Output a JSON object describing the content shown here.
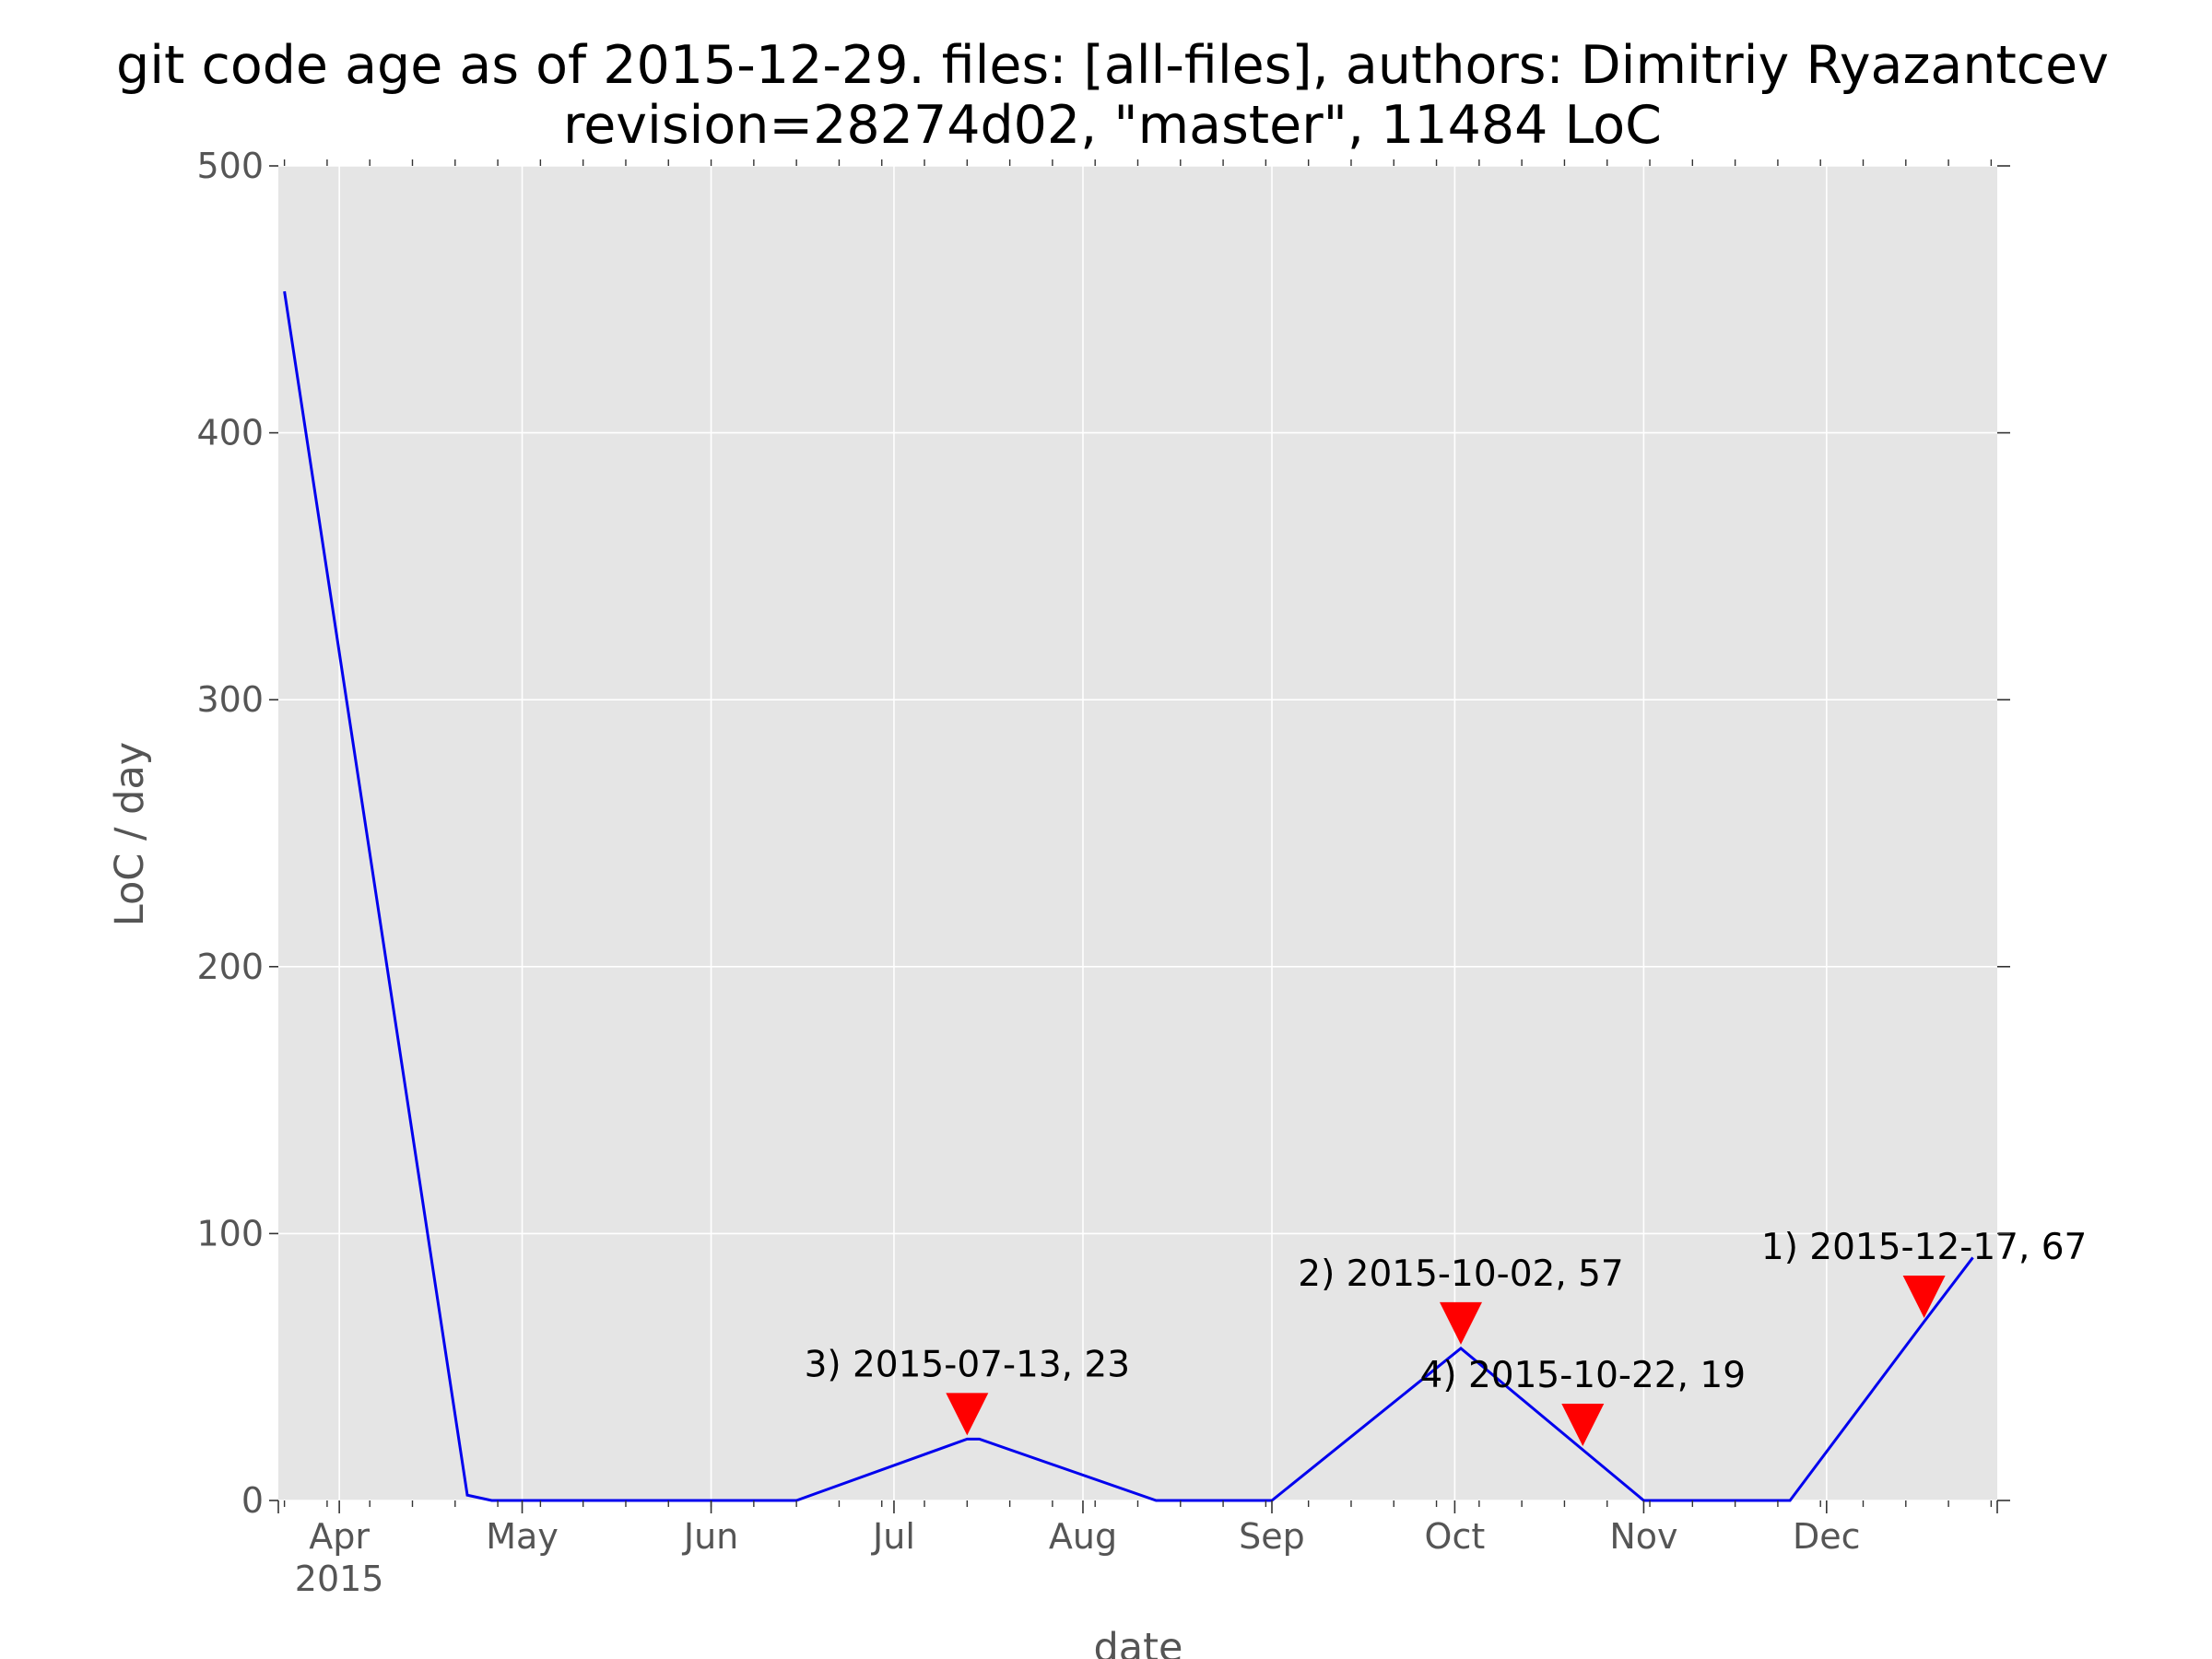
{
  "chart_data": {
    "type": "line",
    "title": {
      "line1": "git code age as of 2015-12-29. files: [all-files], authors: Dimitriy Ryazantcev",
      "line2": "revision=28274d02, \"master\", 11484 LoC"
    },
    "xlabel": "date",
    "ylabel": "LoC / day",
    "x_range": [
      "2015-03-22",
      "2015-12-29"
    ],
    "ylim": [
      0,
      500
    ],
    "y_ticks": [
      0,
      100,
      200,
      300,
      400,
      500
    ],
    "x_ticks": [
      {
        "date": "2015-04-01",
        "label": "Apr",
        "sublabel": "2015"
      },
      {
        "date": "2015-05-01",
        "label": "May"
      },
      {
        "date": "2015-06-01",
        "label": "Jun"
      },
      {
        "date": "2015-07-01",
        "label": "Jul"
      },
      {
        "date": "2015-08-01",
        "label": "Aug"
      },
      {
        "date": "2015-09-01",
        "label": "Sep"
      },
      {
        "date": "2015-10-01",
        "label": "Oct"
      },
      {
        "date": "2015-11-01",
        "label": "Nov"
      },
      {
        "date": "2015-12-01",
        "label": "Dec"
      }
    ],
    "grid": true,
    "background_color": "#e5e5e5",
    "grid_color": "#ffffff",
    "series": [
      {
        "color": "#0000ee",
        "points": [
          {
            "x": "2015-03-23",
            "y": 453
          },
          {
            "x": "2015-04-22",
            "y": 2
          },
          {
            "x": "2015-04-26",
            "y": 0
          },
          {
            "x": "2015-06-15",
            "y": 0
          },
          {
            "x": "2015-07-13",
            "y": 23
          },
          {
            "x": "2015-07-15",
            "y": 23
          },
          {
            "x": "2015-08-13",
            "y": 0
          },
          {
            "x": "2015-09-01",
            "y": 0
          },
          {
            "x": "2015-10-02",
            "y": 57
          },
          {
            "x": "2015-10-22",
            "y": 19
          },
          {
            "x": "2015-11-01",
            "y": 0
          },
          {
            "x": "2015-11-25",
            "y": 0
          },
          {
            "x": "2015-12-17",
            "y": 67
          },
          {
            "x": "2015-12-25",
            "y": 91
          }
        ]
      }
    ],
    "markers": {
      "color": "#ff0000",
      "shape": "triangle-down"
    },
    "annotations": [
      {
        "x": "2015-12-17",
        "y": 67,
        "label": "1) 2015-12-17, 67"
      },
      {
        "x": "2015-10-02",
        "y": 57,
        "label": "2) 2015-10-02, 57"
      },
      {
        "x": "2015-07-13",
        "y": 23,
        "label": "3) 2015-07-13, 23"
      },
      {
        "x": "2015-10-22",
        "y": 19,
        "label": "4) 2015-10-22, 19"
      }
    ]
  }
}
